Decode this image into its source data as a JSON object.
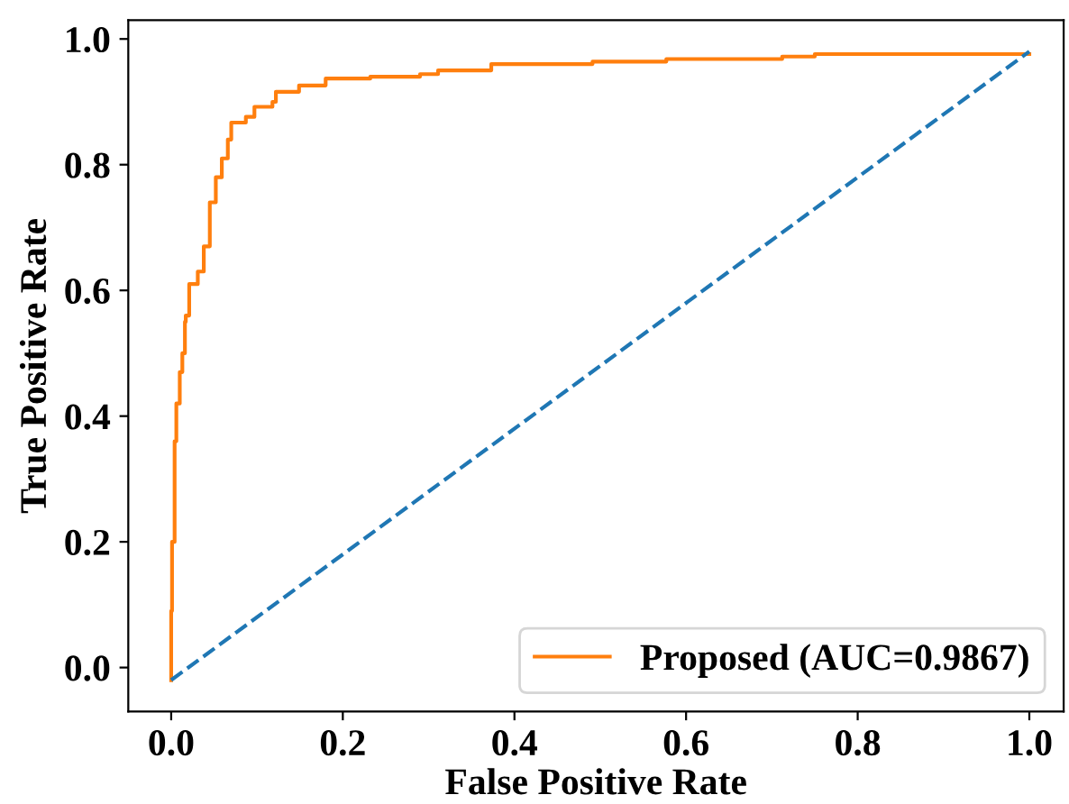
{
  "chart_data": {
    "type": "line",
    "xlabel": "False Positive Rate",
    "ylabel": "True Positive Rate",
    "xlim": [
      -0.05,
      1.04
    ],
    "ylim": [
      -0.07,
      1.03
    ],
    "xticks": [
      {
        "value": 0,
        "label": "0.0"
      },
      {
        "value": 0.2,
        "label": "0.2"
      },
      {
        "value": 0.4,
        "label": "0.4"
      },
      {
        "value": 0.6,
        "label": "0.6"
      },
      {
        "value": 0.8,
        "label": "0.8"
      },
      {
        "value": 1,
        "label": "1.0"
      }
    ],
    "yticks": [
      {
        "value": 0,
        "label": "0.0"
      },
      {
        "value": 0.2,
        "label": "0.2"
      },
      {
        "value": 0.4,
        "label": "0.4"
      },
      {
        "value": 0.6,
        "label": "0.6"
      },
      {
        "value": 0.8,
        "label": "0.8"
      },
      {
        "value": 1,
        "label": "1.0"
      }
    ],
    "grid": false,
    "legend": "bottom right",
    "series": [
      {
        "name": "Proposed (AUC=0.9867)",
        "type": "step",
        "color": "#ff7f0e",
        "line_style": "solid",
        "x": [
          0,
          0,
          0.001,
          0.004,
          0.006,
          0.01,
          0.013,
          0.016,
          0.017,
          0.021,
          0.031,
          0.038,
          0.045,
          0.052,
          0.059,
          0.066,
          0.07,
          0.087,
          0.097,
          0.118,
          0.122,
          0.149,
          0.18,
          0.232,
          0.29,
          0.311,
          0.373,
          0.491,
          0.577,
          0.712,
          0.75,
          1.0
        ],
        "values": [
          -0.02,
          0.09,
          0.2,
          0.36,
          0.42,
          0.47,
          0.5,
          0.55,
          0.56,
          0.61,
          0.63,
          0.67,
          0.74,
          0.78,
          0.81,
          0.84,
          0.867,
          0.876,
          0.892,
          0.9,
          0.916,
          0.926,
          0.937,
          0.94,
          0.944,
          0.95,
          0.96,
          0.964,
          0.968,
          0.972,
          0.976,
          0.976
        ]
      },
      {
        "color": "#1f77b4",
        "line_style": "dashed",
        "x": [
          0,
          1
        ],
        "values": [
          -0.02,
          0.98
        ]
      }
    ]
  }
}
